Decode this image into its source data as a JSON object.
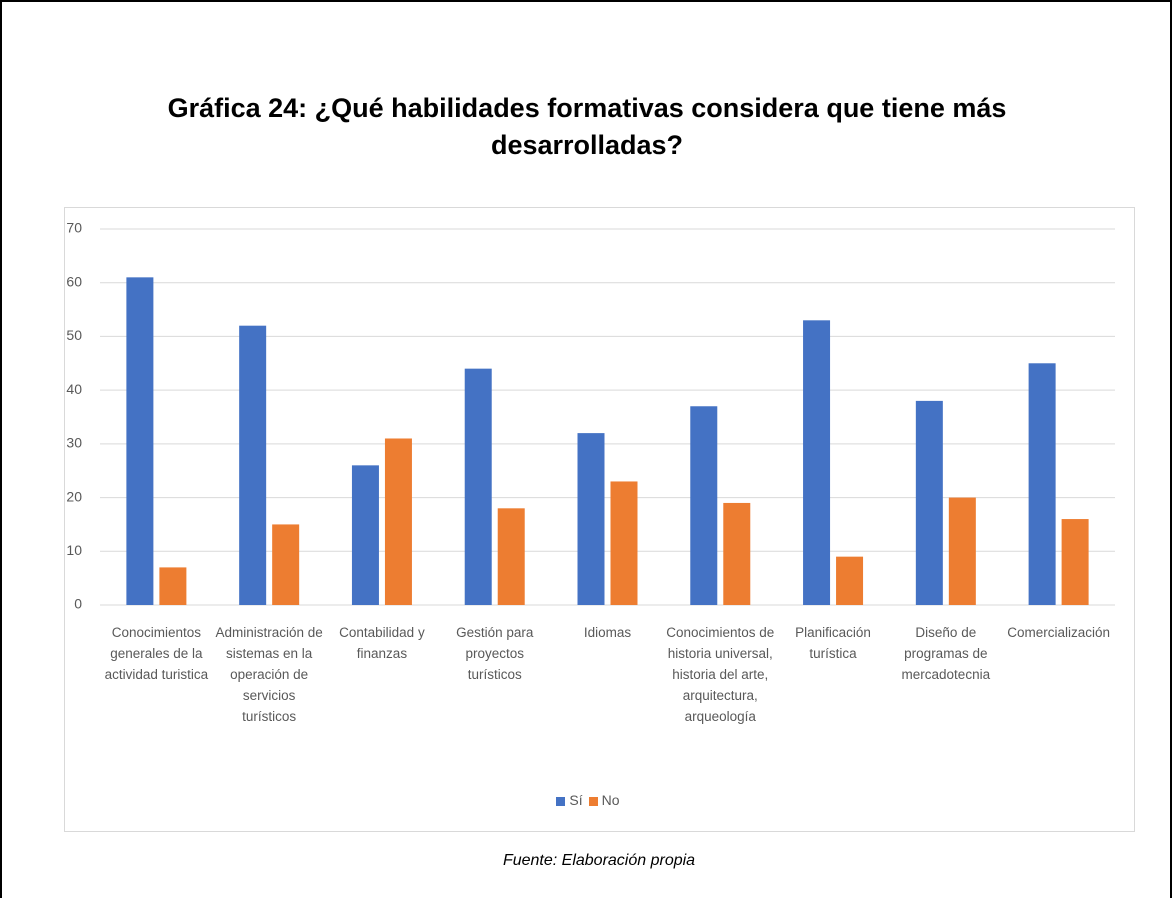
{
  "chart_data": {
    "type": "bar",
    "title": "Gráfica 24: ¿Qué habilidades formativas considera que tiene más desarrolladas?",
    "categories": [
      "Conocimientos generales de la actividad turistica",
      "Administración de sistemas en la operación de servicios turísticos",
      "Contabilidad y finanzas",
      "Gestión para proyectos turísticos",
      "Idiomas",
      "Conocimientos de historia universal, historia del arte, arquitectura, arqueología",
      "Planificación turística",
      "Diseño de programas de mercadotecnia",
      "Comercialización"
    ],
    "series": [
      {
        "name": "Sí",
        "color": "#4472c4",
        "values": [
          61,
          52,
          26,
          44,
          32,
          37,
          53,
          38,
          45
        ]
      },
      {
        "name": "No",
        "color": "#ed7d31",
        "values": [
          7,
          15,
          31,
          18,
          23,
          19,
          9,
          20,
          16
        ]
      }
    ],
    "ylim": [
      0,
      70
    ],
    "yticks": [
      0,
      10,
      20,
      30,
      40,
      50,
      60,
      70
    ],
    "grid": true,
    "legend": "bottom",
    "source": "Fuente: Elaboración propia"
  }
}
